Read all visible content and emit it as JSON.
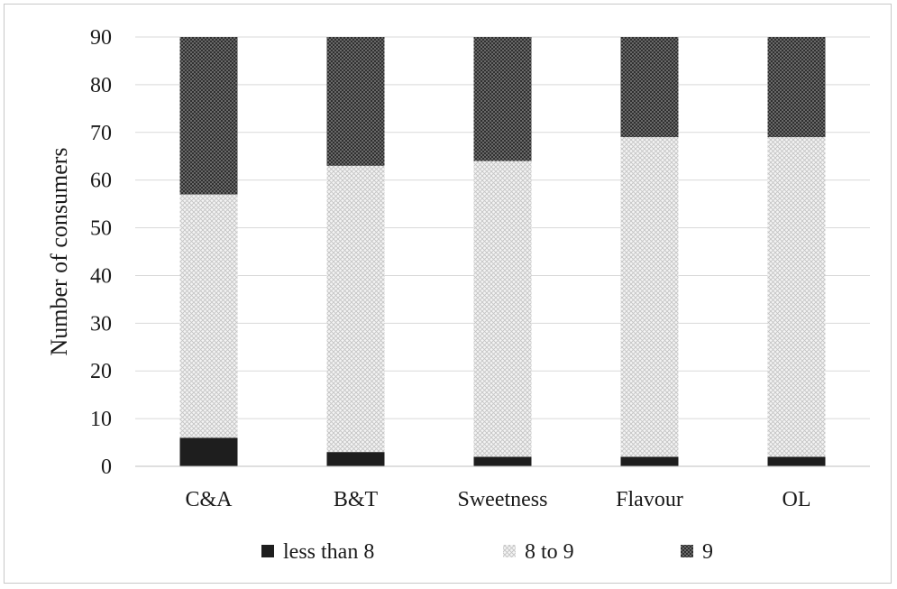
{
  "chart_data": {
    "type": "bar",
    "stacked": true,
    "title": "",
    "xlabel": "",
    "ylabel": "Number of consumers",
    "ylim": [
      0,
      90
    ],
    "yticks": [
      "0",
      "10",
      "20",
      "30",
      "40",
      "50",
      "60",
      "70",
      "80",
      "90"
    ],
    "grid": true,
    "legend_position": "bottom",
    "categories": [
      "C&A",
      "B&T",
      "Sweetness",
      "Flavour",
      "OL"
    ],
    "series": [
      {
        "name": "less than 8",
        "values": [
          6,
          3,
          2,
          2,
          2
        ],
        "color": "#1e1e1e"
      },
      {
        "name": "8 to 9",
        "values": [
          51,
          60,
          62,
          67,
          67
        ],
        "color": "#e8e8e8"
      },
      {
        "name": "9",
        "values": [
          33,
          27,
          26,
          21,
          21
        ],
        "color": "#5a5a5a"
      }
    ]
  }
}
